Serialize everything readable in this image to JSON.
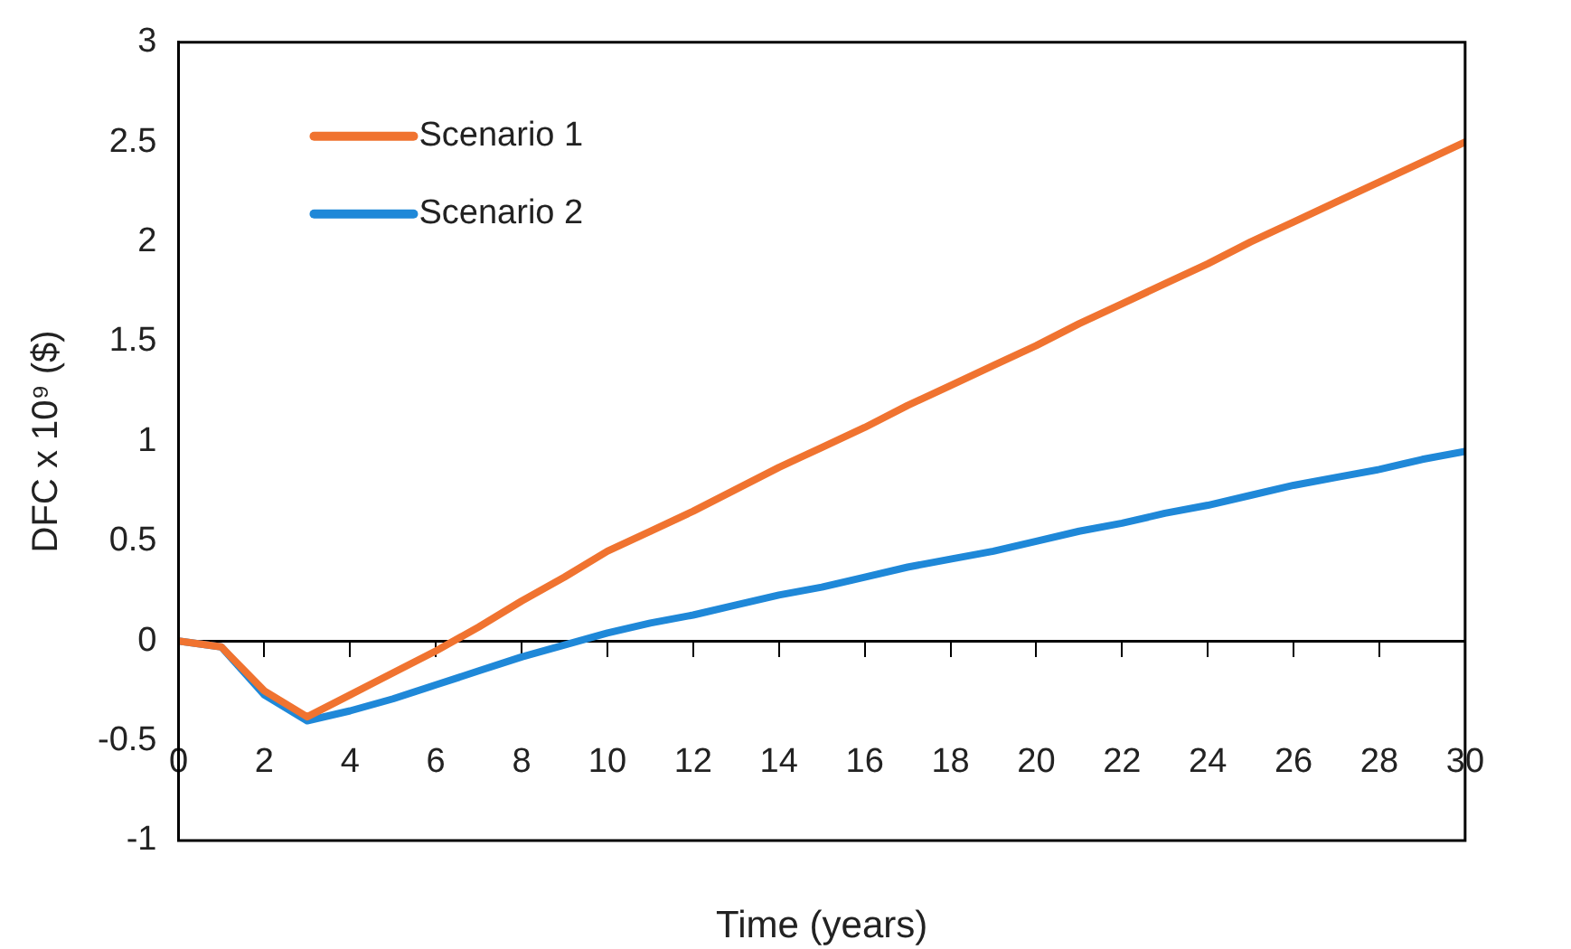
{
  "chart_data": {
    "type": "line",
    "xlabel": "Time (years)",
    "ylabel": "DFC x 10⁹ ($)",
    "x": [
      0,
      1,
      2,
      3,
      4,
      5,
      6,
      7,
      8,
      9,
      10,
      11,
      12,
      13,
      14,
      15,
      16,
      17,
      18,
      19,
      20,
      21,
      22,
      23,
      24,
      25,
      26,
      27,
      28,
      29,
      30
    ],
    "series": [
      {
        "name": "Scenario 1",
        "color": "#f07330",
        "values": [
          0,
          -0.03,
          -0.25,
          -0.38,
          -0.27,
          -0.16,
          -0.05,
          0.07,
          0.2,
          0.32,
          0.45,
          0.55,
          0.65,
          0.76,
          0.87,
          0.97,
          1.07,
          1.18,
          1.28,
          1.38,
          1.48,
          1.59,
          1.69,
          1.79,
          1.89,
          2.0,
          2.1,
          2.2,
          2.3,
          2.4,
          2.5
        ]
      },
      {
        "name": "Scenario 2",
        "color": "#1f88d8",
        "values": [
          0,
          -0.03,
          -0.27,
          -0.4,
          -0.35,
          -0.29,
          -0.22,
          -0.15,
          -0.08,
          -0.02,
          0.04,
          0.09,
          0.13,
          0.18,
          0.23,
          0.27,
          0.32,
          0.37,
          0.41,
          0.45,
          0.5,
          0.55,
          0.59,
          0.64,
          0.68,
          0.73,
          0.78,
          0.82,
          0.86,
          0.91,
          0.95
        ]
      }
    ],
    "xlim": [
      0,
      30
    ],
    "xticks": [
      0,
      2,
      4,
      6,
      8,
      10,
      12,
      14,
      16,
      18,
      20,
      22,
      24,
      26,
      28,
      30
    ],
    "ylim": [
      -1,
      3
    ],
    "yticks": [
      -1,
      -0.5,
      0,
      0.5,
      1,
      1.5,
      2,
      2.5,
      3
    ],
    "legend": "top left",
    "marker": "none",
    "line_style": "solid"
  }
}
